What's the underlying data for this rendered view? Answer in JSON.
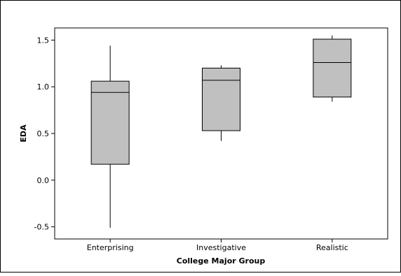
{
  "chart_data": {
    "type": "box",
    "title": "",
    "xlabel": "College Major Group",
    "ylabel": "EDA",
    "categories": [
      "Enterprising",
      "Investigative",
      "Realistic"
    ],
    "boxes": [
      {
        "category": "Enterprising",
        "min": -0.51,
        "q1": 0.17,
        "median": 0.94,
        "q3": 1.06,
        "max": 1.44
      },
      {
        "category": "Investigative",
        "min": 0.42,
        "q1": 0.53,
        "median": 1.07,
        "q3": 1.2,
        "max": 1.23
      },
      {
        "category": "Realistic",
        "min": 0.84,
        "q1": 0.89,
        "median": 1.26,
        "q3": 1.51,
        "max": 1.55
      }
    ],
    "ylim": [
      -0.63,
      1.63
    ],
    "yticks": [
      -0.5,
      0.0,
      0.5,
      1.0,
      1.5
    ],
    "ytick_labels": [
      "-0.5",
      "0.0",
      "0.5",
      "1.0",
      "1.5"
    ],
    "grid": false,
    "colors": {
      "box_fill": "#c0c0c0",
      "stroke": "#000000",
      "background": "#ffffff"
    }
  }
}
